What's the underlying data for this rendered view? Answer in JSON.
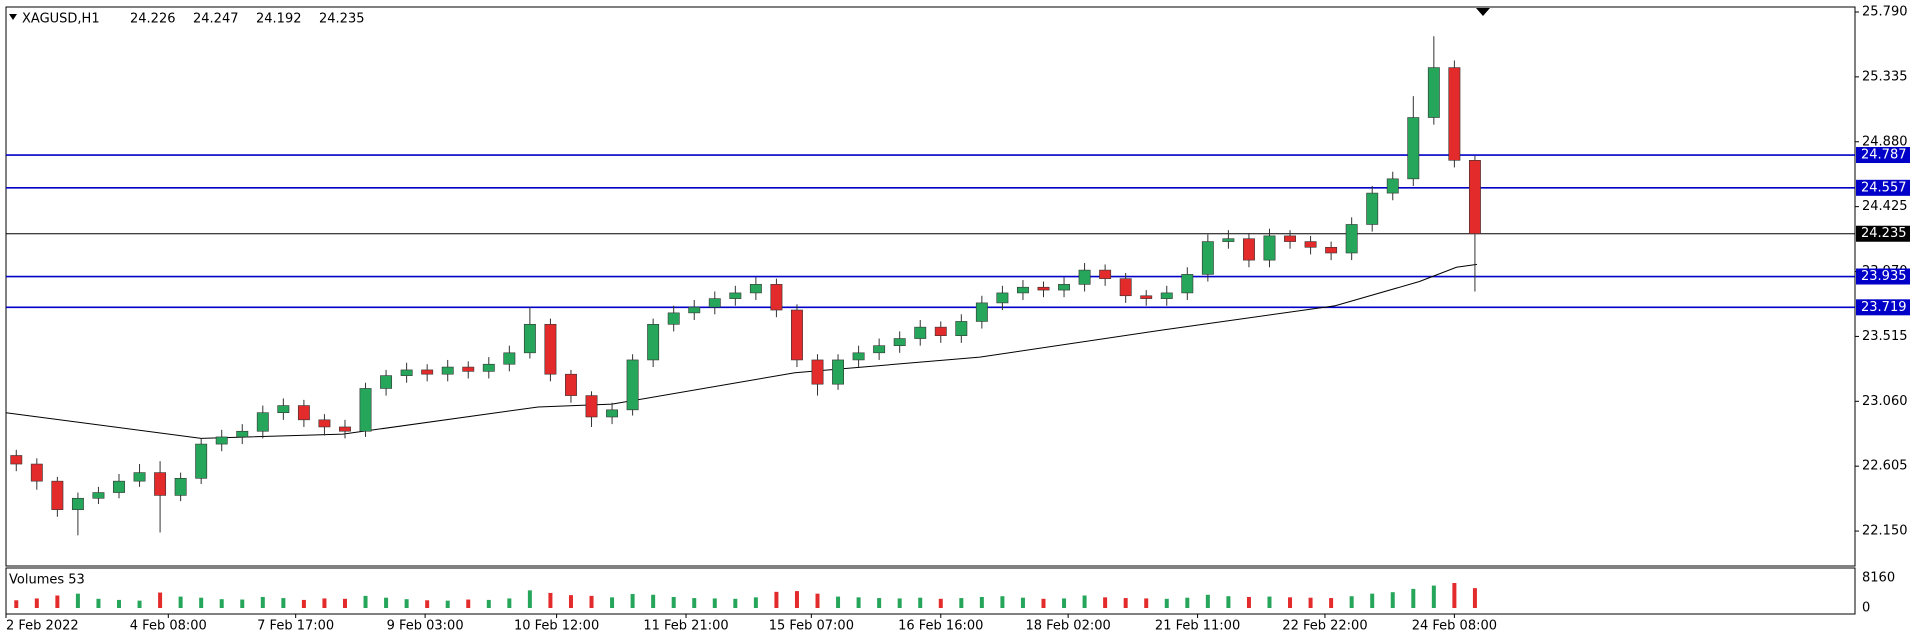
{
  "chart_data": {
    "type": "candlestick",
    "title": "XAGUSD,H1",
    "header_values": [
      24.226,
      24.247,
      24.192,
      24.235
    ],
    "up_color": "#26a65b",
    "down_color": "#e32b2b",
    "xlim": [
      -0.5,
      89.5
    ],
    "xticks": [
      {
        "value": -0.5,
        "label": "2 Feb 2022"
      },
      {
        "value": 7.4,
        "label": "4 Feb 08:00"
      },
      {
        "value": 13.6,
        "label": "7 Feb 17:00"
      },
      {
        "value": 19.9,
        "label": "9 Feb 03:00"
      },
      {
        "value": 26.3,
        "label": "10 Feb 12:00"
      },
      {
        "value": 32.6,
        "label": "11 Feb 21:00"
      },
      {
        "value": 38.7,
        "label": "15 Feb 07:00"
      },
      {
        "value": 45.0,
        "label": "16 Feb 16:00"
      },
      {
        "value": 51.2,
        "label": "18 Feb 02:00"
      },
      {
        "value": 57.5,
        "label": "21 Feb 11:00"
      },
      {
        "value": 63.7,
        "label": "22 Feb 22:00"
      },
      {
        "value": 70.0,
        "label": "24 Feb 08:00"
      }
    ],
    "ylim": [
      21.905,
      25.825
    ],
    "yticks": [
      {
        "value": 25.79,
        "label": "25.790"
      },
      25.335,
      {
        "value": 24.88,
        "label": "24.880"
      },
      24.425,
      {
        "value": 23.97,
        "label": "23.970"
      },
      23.515,
      {
        "value": 23.06,
        "label": "23.060"
      },
      22.605,
      {
        "value": 22.15,
        "label": "22.150"
      }
    ],
    "open": [
      22.68,
      22.62,
      22.5,
      22.3,
      22.38,
      22.42,
      22.5,
      22.56,
      22.4,
      22.52,
      22.76,
      22.81,
      22.85,
      22.98,
      23.03,
      22.93,
      22.88,
      22.85,
      23.15,
      23.24,
      23.28,
      23.25,
      23.3,
      23.27,
      23.32,
      23.4,
      23.6,
      23.25,
      23.1,
      22.95,
      23.0,
      23.35,
      23.6,
      23.68,
      23.72,
      23.78,
      23.82,
      23.88,
      23.7,
      23.35,
      23.18,
      23.35,
      23.4,
      23.45,
      23.5,
      23.58,
      23.52,
      23.62,
      23.75,
      23.82,
      23.86,
      23.84,
      23.88,
      23.98,
      23.92,
      23.8,
      23.78,
      23.82,
      23.95,
      24.18,
      24.2,
      24.05,
      24.22,
      24.18,
      24.14,
      24.1,
      24.3,
      24.52,
      24.62,
      25.05,
      25.4,
      24.75
    ],
    "high": [
      22.72,
      22.66,
      22.53,
      22.42,
      22.46,
      22.55,
      22.62,
      22.64,
      22.56,
      22.8,
      22.86,
      22.9,
      23.03,
      23.08,
      23.07,
      22.97,
      22.93,
      23.19,
      23.28,
      23.33,
      23.32,
      23.35,
      23.34,
      23.37,
      23.45,
      23.72,
      23.64,
      23.28,
      23.13,
      23.05,
      23.39,
      23.64,
      23.73,
      23.77,
      23.83,
      23.87,
      23.93,
      23.92,
      23.74,
      23.39,
      23.39,
      23.45,
      23.5,
      23.55,
      23.63,
      23.62,
      23.67,
      23.8,
      23.87,
      23.91,
      23.9,
      23.93,
      24.03,
      24.02,
      23.96,
      23.84,
      23.87,
      24.0,
      24.23,
      24.26,
      24.24,
      24.27,
      24.26,
      24.22,
      24.18,
      24.35,
      24.57,
      24.67,
      25.2,
      25.62,
      25.45,
      24.78
    ],
    "low": [
      22.57,
      22.44,
      22.25,
      22.12,
      22.34,
      22.38,
      22.46,
      22.14,
      22.36,
      22.48,
      22.71,
      22.76,
      22.8,
      22.93,
      22.88,
      22.82,
      22.8,
      22.81,
      23.1,
      23.19,
      23.2,
      23.2,
      23.22,
      23.22,
      23.27,
      23.36,
      23.2,
      23.05,
      22.88,
      22.9,
      22.96,
      23.3,
      23.55,
      23.63,
      23.67,
      23.73,
      23.77,
      23.65,
      23.3,
      23.1,
      23.14,
      23.3,
      23.35,
      23.4,
      23.45,
      23.47,
      23.47,
      23.57,
      23.7,
      23.77,
      23.79,
      23.79,
      23.83,
      23.87,
      23.75,
      23.73,
      23.73,
      23.77,
      23.9,
      24.13,
      24.0,
      24.0,
      24.13,
      24.09,
      24.05,
      24.05,
      24.25,
      24.47,
      24.57,
      25.0,
      24.7,
      23.83
    ],
    "close": [
      22.62,
      22.5,
      22.3,
      22.38,
      22.42,
      22.5,
      22.56,
      22.4,
      22.52,
      22.76,
      22.81,
      22.85,
      22.98,
      23.03,
      22.93,
      22.88,
      22.85,
      23.15,
      23.24,
      23.28,
      23.25,
      23.3,
      23.27,
      23.32,
      23.4,
      23.6,
      23.25,
      23.1,
      22.95,
      23.0,
      23.35,
      23.6,
      23.68,
      23.72,
      23.78,
      23.82,
      23.88,
      23.7,
      23.35,
      23.18,
      23.35,
      23.4,
      23.45,
      23.5,
      23.58,
      23.52,
      23.62,
      23.75,
      23.82,
      23.86,
      23.84,
      23.88,
      23.98,
      23.92,
      23.8,
      23.78,
      23.82,
      23.95,
      24.18,
      24.2,
      24.05,
      24.22,
      24.18,
      24.14,
      24.1,
      24.3,
      24.52,
      24.62,
      25.05,
      25.4,
      24.75,
      24.235
    ],
    "moving_average": {
      "color": "#000000",
      "x": [
        -0.5,
        9,
        15.9,
        25.4,
        29,
        37.9,
        46.9,
        55.8,
        64.2,
        68.3,
        70.1,
        71.1
      ],
      "values": [
        22.98,
        22.8,
        22.83,
        23.02,
        23.04,
        23.26,
        23.37,
        23.56,
        23.73,
        23.9,
        24.0,
        24.02
      ]
    },
    "levels": {
      "color": "#0000c8",
      "values": [
        24.787,
        24.557,
        23.935,
        23.719
      ]
    },
    "current_price": {
      "color": "#000000",
      "value": 24.235
    },
    "volumes": {
      "title": "Volumes 53",
      "ylim": [
        -1632,
        10880
      ],
      "yticks": [
        8160,
        0
      ],
      "values": [
        2100,
        2600,
        3400,
        3900,
        2500,
        2200,
        2000,
        4200,
        3100,
        2800,
        2400,
        2300,
        3000,
        2700,
        2200,
        2600,
        2500,
        3300,
        2800,
        2400,
        2100,
        2000,
        2300,
        2200,
        2600,
        4800,
        4100,
        3500,
        3300,
        2900,
        3800,
        3600,
        3000,
        2700,
        2600,
        2500,
        2900,
        4400,
        4600,
        3900,
        3100,
        2900,
        2700,
        2600,
        2800,
        2500,
        2700,
        3000,
        3200,
        2800,
        2500,
        2600,
        3400,
        2900,
        2700,
        2600,
        2500,
        2800,
        3600,
        3200,
        3000,
        3100,
        2900,
        2800,
        2700,
        3200,
        3900,
        4300,
        5200,
        6100,
        6800,
        5400
      ]
    }
  }
}
